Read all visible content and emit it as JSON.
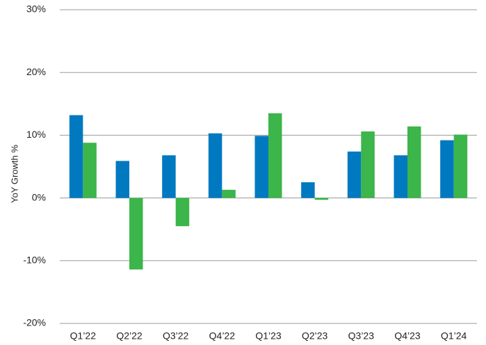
{
  "chart_data": {
    "type": "bar",
    "y_label": "YoY Growth %",
    "categories": [
      "Q1’22",
      "Q2’22",
      "Q3’22",
      "Q4’22",
      "Q1’23",
      "Q2’23",
      "Q3’23",
      "Q4’23",
      "Q1’24"
    ],
    "series": [
      {
        "color": "#0079c1",
        "values": [
          13.2,
          5.9,
          6.8,
          10.3,
          9.9,
          2.5,
          7.4,
          6.8,
          9.2
        ]
      },
      {
        "color": "#3cb54a",
        "values": [
          8.8,
          -11.4,
          -4.5,
          1.3,
          13.5,
          -0.3,
          10.6,
          11.4,
          10.1
        ]
      }
    ],
    "ylim": [
      -20,
      30
    ],
    "yticks": [
      {
        "value": -20,
        "label": "-20%"
      },
      {
        "value": -10,
        "label": "-10%"
      },
      {
        "value": 0,
        "label": "0%"
      },
      {
        "value": 10,
        "label": "10%"
      },
      {
        "value": 20,
        "label": "20%"
      },
      {
        "value": 30,
        "label": "30%"
      }
    ],
    "grid": true
  }
}
